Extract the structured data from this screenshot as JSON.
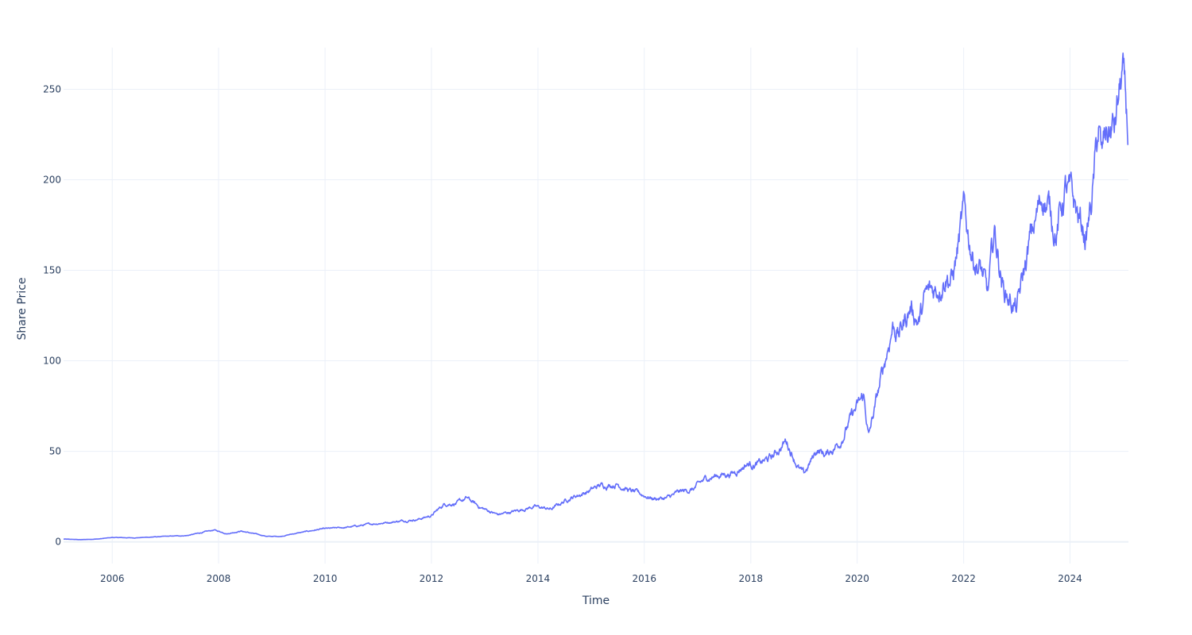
{
  "chart_data": {
    "type": "line",
    "title": "",
    "xlabel": "Time",
    "ylabel": "Share Price",
    "xlim": [
      "2005-02-01",
      "2025-02-05"
    ],
    "ylim": [
      -12,
      273
    ],
    "grid": true,
    "legend": "none",
    "x_ticks": [
      "2006",
      "2008",
      "2010",
      "2012",
      "2014",
      "2016",
      "2018",
      "2020",
      "2022",
      "2024"
    ],
    "y_ticks": [
      0,
      50,
      100,
      150,
      200,
      250
    ],
    "colors": {
      "line": "#636efa",
      "grid": "#ebf0f8",
      "text": "#2a3f5f"
    },
    "series": [
      {
        "x": [
          "2005-02-01",
          "2005-06-01",
          "2005-10-01",
          "2006-01-01",
          "2006-06-01",
          "2007-01-01",
          "2007-06-01",
          "2007-12-01",
          "2008-03-01",
          "2008-06-01",
          "2008-09-01",
          "2008-12-01",
          "2009-03-01",
          "2009-06-01",
          "2009-12-01",
          "2010-06-01",
          "2010-12-01",
          "2011-06-01",
          "2011-10-01",
          "2012-01-01",
          "2012-04-01",
          "2012-07-01",
          "2012-09-01",
          "2012-12-01",
          "2013-04-01",
          "2013-08-01",
          "2013-12-01",
          "2014-04-01",
          "2014-08-01",
          "2014-12-01",
          "2015-03-01",
          "2015-07-01",
          "2015-10-01",
          "2016-03-01",
          "2016-06-01",
          "2016-09-01",
          "2016-12-01",
          "2017-03-01",
          "2017-06-01",
          "2017-09-01",
          "2017-12-01",
          "2018-03-01",
          "2018-06-01",
          "2018-09-01",
          "2018-12-01",
          "2019-01-01",
          "2019-04-01",
          "2019-06-01",
          "2019-09-01",
          "2019-12-01",
          "2020-02-15",
          "2020-03-20",
          "2020-06-01",
          "2020-09-01",
          "2020-10-15",
          "2021-01-01",
          "2021-03-01",
          "2021-04-15",
          "2021-07-01",
          "2021-09-01",
          "2021-10-15",
          "2022-01-01",
          "2022-03-01",
          "2022-05-01",
          "2022-06-15",
          "2022-08-01",
          "2022-10-01",
          "2023-01-01",
          "2023-04-01",
          "2023-07-01",
          "2023-10-01",
          "2023-12-01",
          "2024-02-01",
          "2024-04-20",
          "2024-06-01",
          "2024-07-15",
          "2024-08-05",
          "2024-09-01",
          "2024-11-01",
          "2024-12-26",
          "2025-02-01"
        ],
        "y": [
          1.5,
          1.2,
          1.6,
          2.4,
          2.2,
          3.0,
          3.5,
          6.5,
          4.5,
          6.0,
          4.5,
          3.0,
          3.0,
          4.5,
          7.0,
          8.0,
          10.0,
          11.5,
          12.5,
          14.5,
          21.0,
          21.5,
          24.0,
          19.0,
          15.0,
          17.0,
          19.5,
          18.0,
          24.0,
          27.5,
          31.0,
          32.0,
          28.0,
          24.0,
          24.0,
          27.5,
          29.0,
          35.0,
          37.0,
          38.0,
          43.0,
          43.0,
          47.0,
          56.0,
          40.0,
          37.0,
          51.0,
          48.0,
          55.0,
          70.0,
          80.0,
          58.0,
          85.0,
          120.0,
          115.0,
          130.0,
          122.0,
          135.0,
          140.0,
          150.0,
          145.0,
          180.0,
          160.0,
          150.0,
          135.0,
          170.0,
          140.0,
          128.0,
          165.0,
          193.0,
          172.0,
          195.0,
          185.0,
          168.0,
          190.0,
          228.0,
          210.0,
          225.0,
          228.0,
          258.0,
          224.0
        ]
      }
    ]
  }
}
